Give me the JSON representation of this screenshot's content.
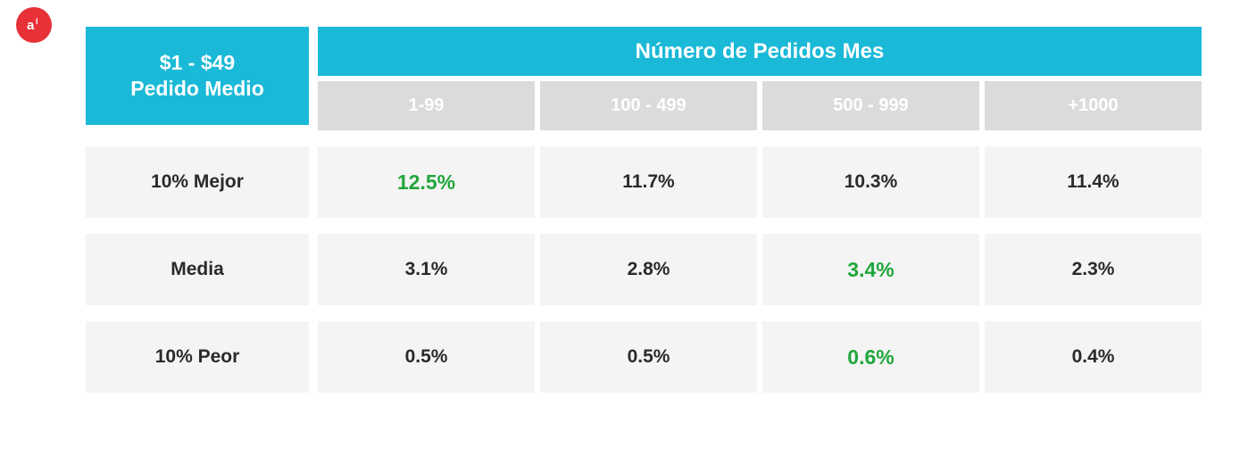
{
  "logo": {
    "bg": "#e73037",
    "glyph": "al"
  },
  "colors": {
    "header_bg": "#1ab9d7",
    "header_text": "#ffffff",
    "subheader_bg": "#dbdbdb",
    "subheader_text": "#ffffff",
    "body_bg": "#f4f4f4",
    "body_text": "#2a2a2a",
    "highlight_text": "#20a63b"
  },
  "corner": {
    "line1": "$1 - $49",
    "line2": "Pedido Medio"
  },
  "header_title": "Número de Pedidos Mes",
  "columns": [
    "1-99",
    "100 - 499",
    "500 - 999",
    "+1000"
  ],
  "rows": [
    {
      "label": "10% Mejor",
      "cells": [
        {
          "value": "12.5%",
          "highlight": true
        },
        {
          "value": "11.7%",
          "highlight": false
        },
        {
          "value": "10.3%",
          "highlight": false
        },
        {
          "value": "11.4%",
          "highlight": false
        }
      ]
    },
    {
      "label": "Media",
      "cells": [
        {
          "value": "3.1%",
          "highlight": false
        },
        {
          "value": "2.8%",
          "highlight": false
        },
        {
          "value": "3.4%",
          "highlight": true
        },
        {
          "value": "2.3%",
          "highlight": false
        }
      ]
    },
    {
      "label": "10% Peor",
      "cells": [
        {
          "value": "0.5%",
          "highlight": false
        },
        {
          "value": "0.5%",
          "highlight": false
        },
        {
          "value": "0.6%",
          "highlight": true
        },
        {
          "value": "0.4%",
          "highlight": false
        }
      ]
    }
  ]
}
